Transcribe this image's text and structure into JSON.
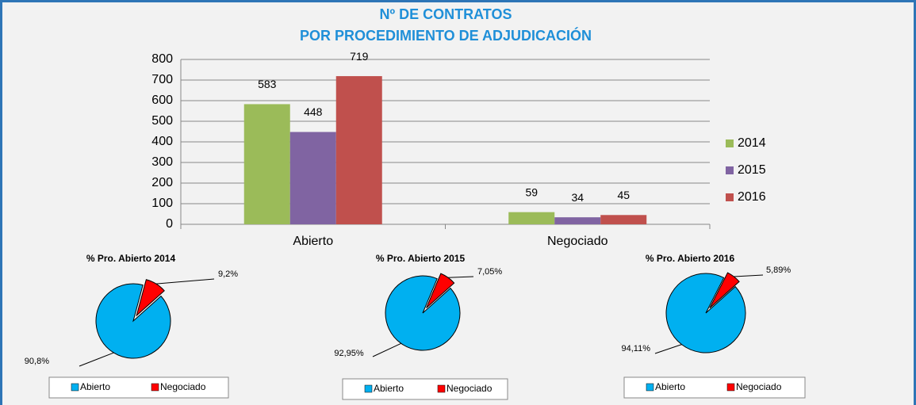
{
  "chart_data": [
    {
      "type": "bar",
      "title": [
        "Nº DE CONTRATOS",
        "POR PROCEDIMIENTO DE ADJUDICACIÓN"
      ],
      "categories": [
        "Abierto",
        "Negociado"
      ],
      "series": [
        {
          "name": "2014",
          "color": "#9bbb59",
          "values": [
            583,
            59
          ]
        },
        {
          "name": "2015",
          "color": "#8064a2",
          "values": [
            448,
            34
          ]
        },
        {
          "name": "2016",
          "color": "#c0504d",
          "values": [
            719,
            45
          ]
        }
      ],
      "ylim": [
        0,
        800
      ],
      "yticks": [
        0,
        100,
        200,
        300,
        400,
        500,
        600,
        700,
        800
      ],
      "grid": true,
      "legend": "right"
    },
    {
      "type": "pie",
      "title": "% Pro. Abierto 2014",
      "categories": [
        "Abierto",
        "Negociado"
      ],
      "colors": [
        "#00b0f0",
        "#ff0000"
      ],
      "values": [
        90.8,
        9.2
      ],
      "value_labels": [
        "90,8%",
        "9,2%"
      ],
      "legend": "bottom"
    },
    {
      "type": "pie",
      "title": "% Pro. Abierto 2015",
      "categories": [
        "Abierto",
        "Negociado"
      ],
      "colors": [
        "#00b0f0",
        "#ff0000"
      ],
      "values": [
        92.95,
        7.05
      ],
      "value_labels": [
        "92,95%",
        "7,05%"
      ],
      "legend": "bottom"
    },
    {
      "type": "pie",
      "title": "% Pro. Abierto 2016",
      "categories": [
        "Abierto",
        "Negociado"
      ],
      "colors": [
        "#00b0f0",
        "#ff0000"
      ],
      "values": [
        94.11,
        5.89
      ],
      "value_labels": [
        "94,11%",
        "5,89%"
      ],
      "legend": "bottom"
    }
  ]
}
